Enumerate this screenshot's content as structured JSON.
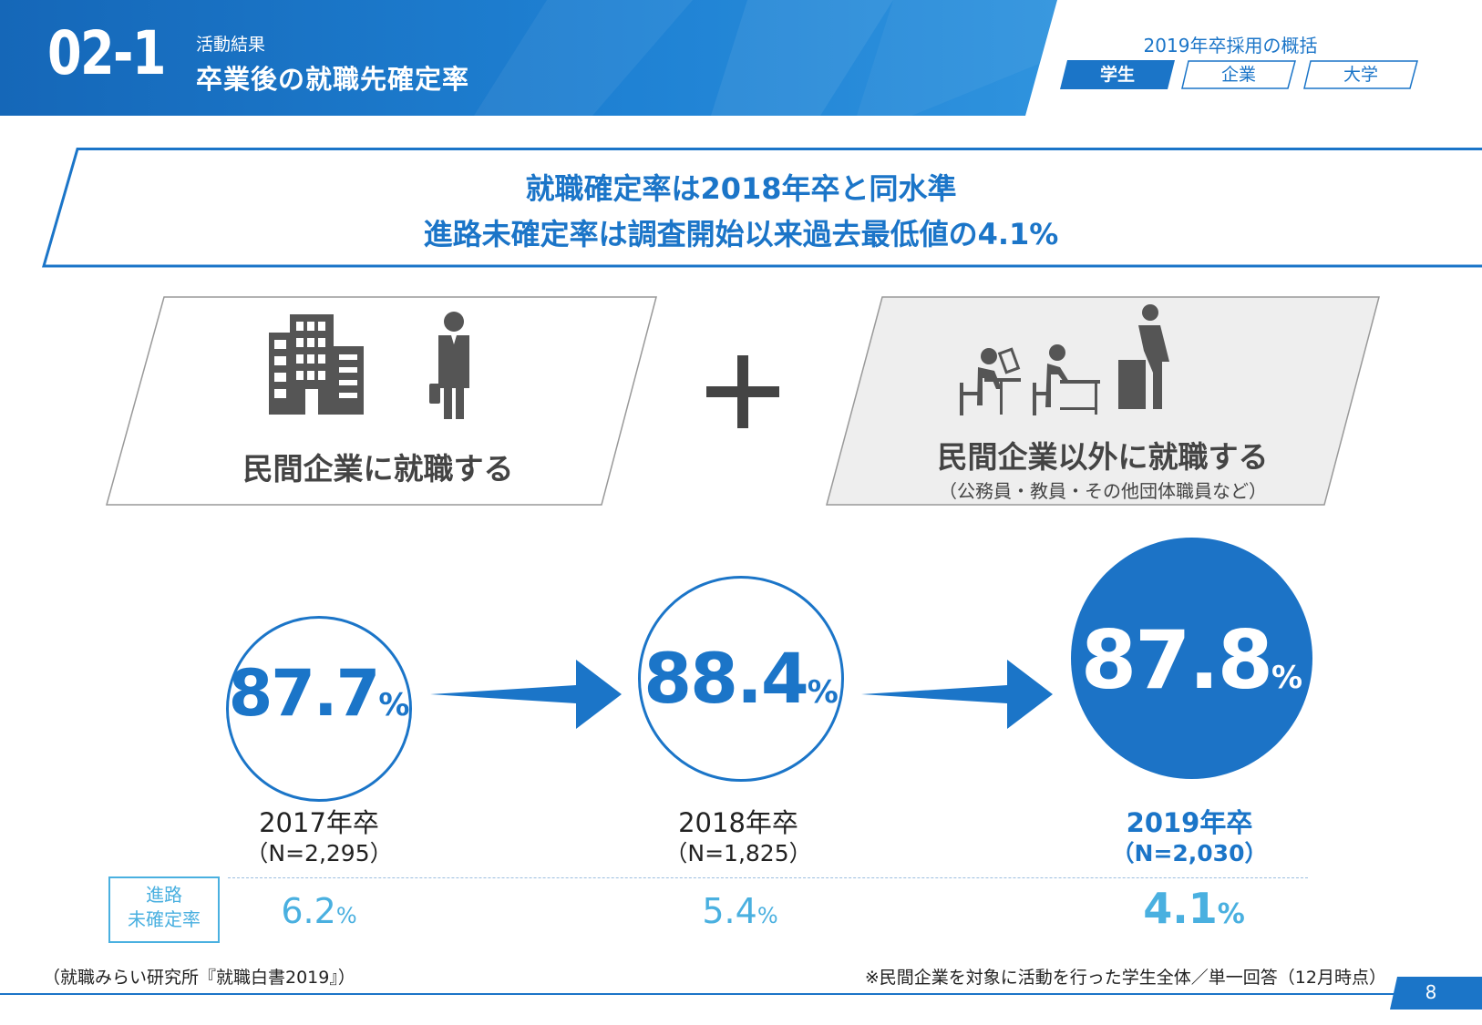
{
  "header": {
    "section_number": "02-1",
    "section_label": "活動結果",
    "section_title": "卒業後の就職先確定率",
    "overview_title": "2019年卒採用の概括",
    "tabs": [
      {
        "label": "学生",
        "active": true
      },
      {
        "label": "企業",
        "active": false
      },
      {
        "label": "大学",
        "active": false
      }
    ]
  },
  "headline": {
    "line1": "就職確定率は2018年卒と同水準",
    "line2": "進路未確定率は調査開始以来過去最低値の4.1%"
  },
  "panels": {
    "left": {
      "label": "民間企業に就職する",
      "icons": [
        "office-building-icon",
        "businessman-icon"
      ]
    },
    "plus_icon": "plus-icon",
    "right": {
      "label": "民間企業以外に就職する",
      "sublabel": "（公務員・教員・その他団体職員など）",
      "icons": [
        "desk-worker-icon",
        "desk-worker-icon",
        "teacher-podium-icon"
      ]
    }
  },
  "rates": [
    {
      "value": "87.7",
      "unit": "%",
      "year": "2017年卒",
      "n": "（N=2,295）",
      "undecided": "6.2",
      "undecided_unit": "%"
    },
    {
      "value": "88.4",
      "unit": "%",
      "year": "2018年卒",
      "n": "（N=1,825）",
      "undecided": "5.4",
      "undecided_unit": "%"
    },
    {
      "value": "87.8",
      "unit": "%",
      "year": "2019年卒",
      "n": "（N=2,030）",
      "undecided": "4.1",
      "undecided_unit": "%"
    }
  ],
  "undecided_label_line1": "進路",
  "undecided_label_line2": "未確定率",
  "footer": {
    "source": "（就職みらい研究所『就職白書2019』）",
    "scope": "※民間企業を対象に活動を行った学生全体／単一回答（12月時点）",
    "page": "8"
  },
  "colors": {
    "primary": "#1b75c8",
    "accent_light": "#4ab0e0",
    "panel_gray": "#efefef",
    "text": "#333333"
  }
}
